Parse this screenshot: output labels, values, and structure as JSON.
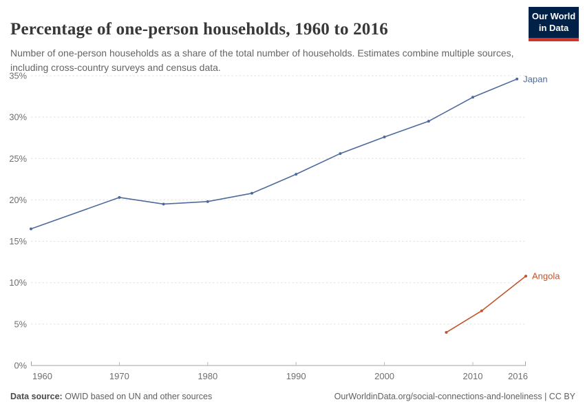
{
  "header": {
    "title": "Percentage of one-person households, 1960 to 2016",
    "subtitle": "Number of one-person households as a share of the total number of households. Estimates combine multiple sources, including cross-country surveys and census data.",
    "logo": {
      "line1": "Our World",
      "line2": "in Data",
      "bg_color": "#002147",
      "bar_color": "#d0342a"
    }
  },
  "chart_data": {
    "type": "line",
    "title": "Percentage of one-person households, 1960 to 2016",
    "x_axis": {
      "min": 1960,
      "max": 2016,
      "ticks": [
        1960,
        1970,
        1980,
        1990,
        2000,
        2010,
        2016
      ]
    },
    "y_axis": {
      "min": 0,
      "max": 35,
      "ticks": [
        0,
        5,
        10,
        15,
        20,
        25,
        30,
        35
      ],
      "tick_suffix": "%"
    },
    "grid": "horizontal-dashed",
    "legend_position": "end-of-line-labels",
    "series": [
      {
        "name": "Japan",
        "color": "#4c6a9c",
        "points": [
          [
            1960,
            16.5
          ],
          [
            1970,
            20.3
          ],
          [
            1975,
            19.5
          ],
          [
            1980,
            19.8
          ],
          [
            1985,
            20.8
          ],
          [
            1990,
            23.1
          ],
          [
            1995,
            25.6
          ],
          [
            2000,
            27.6
          ],
          [
            2005,
            29.5
          ],
          [
            2010,
            32.4
          ],
          [
            2015,
            34.6
          ]
        ]
      },
      {
        "name": "Angola",
        "color": "#c4532a",
        "points": [
          [
            2007,
            4.0
          ],
          [
            2011,
            6.6
          ],
          [
            2016,
            10.8
          ]
        ]
      }
    ],
    "colors": {
      "gridline": "#e0e0e0",
      "axis_line": "#a3a3a3",
      "tick_text": "#6e6e6e"
    }
  },
  "footer": {
    "source_label": "Data source:",
    "source_text": " OWID based on UN and other sources",
    "link_text": "OurWorldinData.org/social-connections-and-loneliness | CC BY"
  }
}
